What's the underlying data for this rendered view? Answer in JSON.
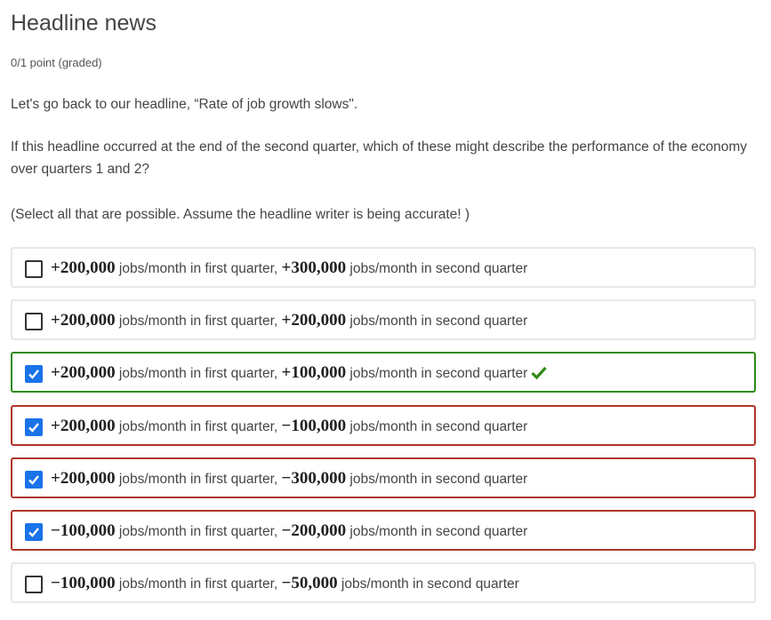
{
  "problem": {
    "title": "Headline news",
    "points": "0/1 point (graded)",
    "intro": "Let's go back to our headline, “Rate of job growth slows\".",
    "question": "If this headline occurred at the end of the second quarter, which of these might describe the performance of the economy over quarters 1 and 2?",
    "instruction": "(Select all that are possible. Assume the headline writer is being accurate! )"
  },
  "choices": [
    {
      "q1": "+200,000",
      "q2": "+300,000",
      "checked": false,
      "status": "none"
    },
    {
      "q1": "+200,000",
      "q2": "+200,000",
      "checked": false,
      "status": "none"
    },
    {
      "q1": "+200,000",
      "q2": "+100,000",
      "checked": true,
      "status": "correct"
    },
    {
      "q1": "+200,000",
      "q2": "−100,000",
      "checked": true,
      "status": "incorrect"
    },
    {
      "q1": "+200,000",
      "q2": "−300,000",
      "checked": true,
      "status": "incorrect"
    },
    {
      "q1": "−100,000",
      "q2": "−200,000",
      "checked": true,
      "status": "incorrect"
    },
    {
      "q1": "−100,000",
      "q2": "−50,000",
      "checked": false,
      "status": "none"
    }
  ],
  "labels": {
    "first": " jobs/month in first quarter, ",
    "second": " jobs/month in second quarter"
  },
  "colors": {
    "correct": "#2f8a17",
    "incorrect": "#b0352a",
    "checkbox": "#1a73e8"
  }
}
